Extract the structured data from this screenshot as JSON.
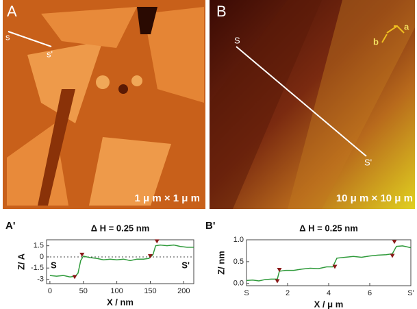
{
  "images": {
    "A": {
      "label": "A",
      "start": "s",
      "end": "s'",
      "scale": "1 μ m × 1 μ m"
    },
    "B": {
      "label": "B",
      "start": "S",
      "end": "S'",
      "scale": "10 μ m × 10 μ m",
      "axis_a": "a",
      "axis_b": "b"
    }
  },
  "chart_data": [
    {
      "type": "line",
      "panel": "A'",
      "title": "Δ H = 0.25 nm",
      "x_label": "X / nm",
      "y_label": "Z/ A",
      "start_label": "S",
      "end_label": "S'",
      "xlim": [
        -5,
        215
      ],
      "xticks": [
        0,
        50,
        100,
        150,
        200
      ],
      "ylim": [
        -3.6,
        2.3
      ],
      "yticks": [
        1.5,
        0,
        -1.5,
        -3
      ],
      "hlines": [
        0
      ],
      "color": "#2e9a3a",
      "marker_color": "#8b1a1a",
      "x": [
        0,
        10,
        20,
        30,
        38,
        42,
        46,
        50,
        60,
        70,
        80,
        90,
        100,
        110,
        120,
        130,
        140,
        148,
        154,
        158,
        165,
        175,
        185,
        195,
        205,
        215
      ],
      "values": [
        -2.5,
        -2.6,
        -2.5,
        -2.7,
        -2.6,
        -2.2,
        -0.5,
        0.1,
        -0.1,
        -0.2,
        -0.4,
        -0.3,
        -0.4,
        -0.3,
        -0.5,
        -0.3,
        -0.3,
        -0.2,
        0.3,
        1.5,
        1.6,
        1.5,
        1.6,
        1.4,
        1.3,
        1.3
      ],
      "markers": {
        "x": [
          37,
          48,
          150,
          160
        ],
        "values": [
          -2.9,
          0.1,
          -0.1,
          1.9
        ]
      }
    },
    {
      "type": "line",
      "panel": "B'",
      "title": "Δ H = 0.25 nm",
      "x_label": "X / μ m",
      "y_label": "Z/ nm",
      "xlim": [
        0,
        8
      ],
      "xticks": [
        {
          "value": 0,
          "label": "S"
        },
        2,
        4,
        6,
        {
          "value": 8,
          "label": "S'"
        }
      ],
      "ylim": [
        -0.05,
        1.0
      ],
      "yticks": [
        {
          "value": 0,
          "label": "0.0"
        },
        {
          "value": 0.5,
          "label": "0.5"
        },
        {
          "value": 1,
          "label": "1.0"
        }
      ],
      "color": "#2e9a3a",
      "marker_color": "#8b1a1a",
      "x": [
        0,
        0.3,
        0.6,
        0.9,
        1.2,
        1.5,
        1.6,
        1.9,
        2.3,
        2.7,
        3.1,
        3.5,
        3.9,
        4.2,
        4.4,
        4.8,
        5.2,
        5.6,
        6.0,
        6.4,
        6.8,
        7.1,
        7.3,
        7.6,
        8.0
      ],
      "values": [
        0.07,
        0.08,
        0.06,
        0.09,
        0.1,
        0.1,
        0.28,
        0.3,
        0.3,
        0.33,
        0.35,
        0.34,
        0.38,
        0.38,
        0.58,
        0.6,
        0.62,
        0.6,
        0.63,
        0.65,
        0.66,
        0.68,
        0.85,
        0.86,
        0.82
      ],
      "markers": {
        "x": [
          1.5,
          1.6,
          4.3,
          7.1,
          7.2
        ],
        "values": [
          0.02,
          0.28,
          0.35,
          0.6,
          0.92
        ]
      }
    }
  ]
}
